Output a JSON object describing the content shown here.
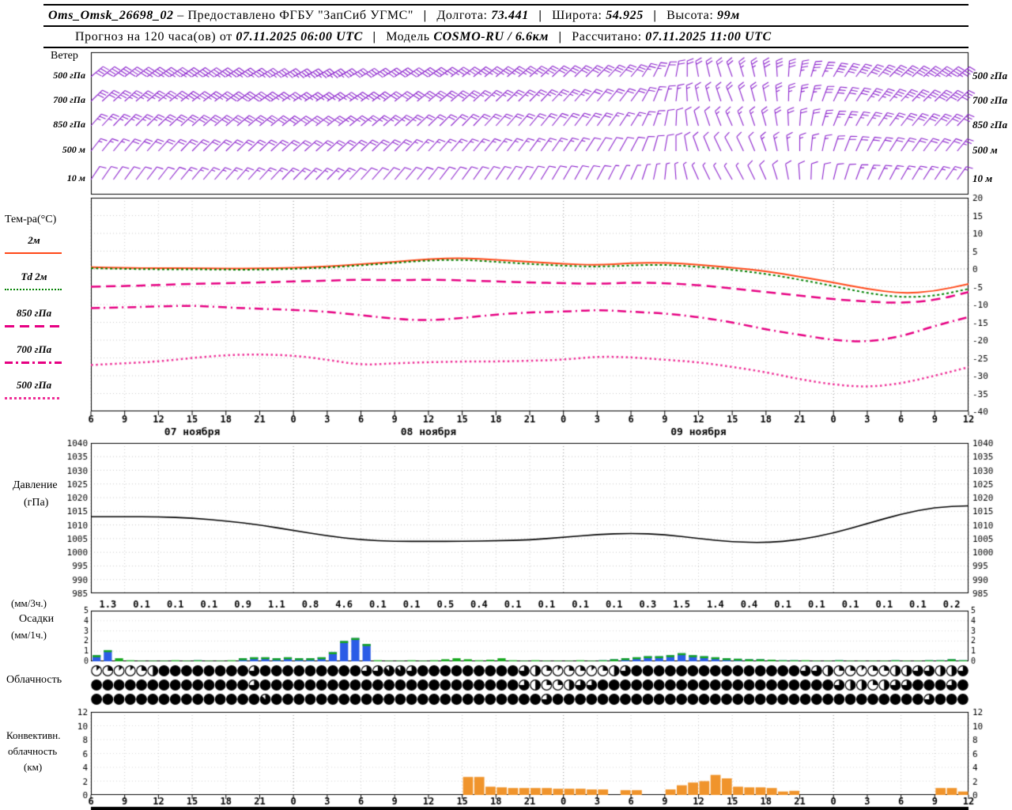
{
  "header": {
    "sep": "|",
    "line1": {
      "station": "Oms_Omsk_26698_02",
      "provided": "– Предоставлено ФГБУ \"ЗапСиб УГМС\"",
      "lon_label": "Долгота:",
      "lon": "73.441",
      "lat_label": "Широта:",
      "lat": "54.925",
      "alt_label": "Высота:",
      "alt": "99м"
    },
    "line2": {
      "forecast_label": "Прогноз на 120 часа(ов) от",
      "run_time": "07.11.2025 06:00 UTC",
      "model_label": "Модель",
      "model": "COSMO-RU / 6.6км",
      "calc_label": "Рассчитано:",
      "calc_time": "07.11.2025 11:00 UTC"
    }
  },
  "side_labels": {
    "wind": "Ветер",
    "wind_levels": [
      "500 гПа",
      "700 гПа",
      "850 гПа",
      "500 м",
      "10 м"
    ],
    "temp_title": "Тем-ра(°C)",
    "temp_legend": [
      {
        "label": "2м"
      },
      {
        "label": "Td 2м"
      },
      {
        "label": "850 гПа"
      },
      {
        "label": "700 гПа"
      },
      {
        "label": "500 гПа"
      }
    ],
    "pressure_1": "Давление",
    "pressure_2": "(гПа)",
    "precip_1": "(мм/3ч.)",
    "precip_2": "Осадки",
    "precip_3": "(мм/1ч.)",
    "cloud": "Облачность",
    "conv_1": "Конвективн.",
    "conv_2": "облачность",
    "conv_3": "(км)"
  },
  "chart_data": {
    "type": "meteogram",
    "time": {
      "hours_span": 78,
      "step": 3,
      "tick_labels": [
        "6",
        "9",
        "12",
        "15",
        "18",
        "21",
        "0",
        "3",
        "6",
        "9",
        "12",
        "15",
        "18",
        "21",
        "0",
        "3",
        "6",
        "9",
        "12",
        "15",
        "18",
        "21",
        "0",
        "3",
        "6",
        "9",
        "12"
      ],
      "dates": [
        {
          "label": "07 ноября",
          "center_h": 9
        },
        {
          "label": "08 ноября",
          "center_h": 30
        },
        {
          "label": "09 ноября",
          "center_h": 54
        }
      ]
    },
    "wind": {
      "color": "#8b22cc",
      "levels": [
        {
          "label": "500 гПа",
          "dirs": [
            50,
            52,
            54,
            55,
            56,
            58,
            60,
            60,
            58,
            56,
            54,
            52,
            50,
            48,
            46,
            44,
            40,
            20,
            350,
            340,
            350,
            10,
            30,
            40,
            46,
            50,
            52
          ],
          "spds": [
            40,
            42,
            44,
            44,
            45,
            45,
            44,
            44,
            42,
            40,
            38,
            36,
            34,
            34,
            32,
            30,
            28,
            22,
            18,
            22,
            28,
            34,
            38,
            40,
            42,
            44,
            45
          ]
        },
        {
          "label": "700 гПа",
          "dirs": [
            46,
            48,
            50,
            52,
            53,
            54,
            56,
            56,
            54,
            52,
            50,
            48,
            46,
            44,
            42,
            40,
            36,
            16,
            348,
            338,
            348,
            8,
            26,
            36,
            42,
            46,
            48
          ],
          "spds": [
            32,
            34,
            35,
            36,
            38,
            38,
            36,
            35,
            34,
            32,
            30,
            28,
            26,
            26,
            24,
            22,
            20,
            16,
            14,
            18,
            22,
            26,
            30,
            34,
            36,
            38,
            40
          ]
        },
        {
          "label": "850 гПа",
          "dirs": [
            42,
            44,
            46,
            48,
            49,
            50,
            52,
            52,
            50,
            48,
            46,
            44,
            42,
            40,
            38,
            36,
            32,
            12,
            344,
            336,
            344,
            4,
            22,
            32,
            38,
            42,
            44
          ],
          "spds": [
            24,
            26,
            28,
            28,
            30,
            30,
            28,
            28,
            26,
            24,
            22,
            22,
            20,
            20,
            18,
            18,
            16,
            12,
            12,
            14,
            18,
            22,
            24,
            26,
            28,
            30,
            30
          ]
        },
        {
          "label": "500 м",
          "dirs": [
            38,
            40,
            42,
            44,
            45,
            46,
            48,
            48,
            46,
            44,
            42,
            40,
            38,
            36,
            34,
            32,
            28,
            10,
            340,
            332,
            340,
            0,
            18,
            28,
            34,
            38,
            40
          ],
          "spds": [
            16,
            18,
            18,
            20,
            20,
            22,
            22,
            20,
            18,
            18,
            16,
            16,
            15,
            14,
            14,
            12,
            12,
            10,
            8,
            10,
            14,
            16,
            18,
            20,
            22,
            22,
            24
          ]
        },
        {
          "label": "10 м",
          "dirs": [
            34,
            36,
            38,
            40,
            41,
            42,
            44,
            44,
            42,
            40,
            38,
            36,
            34,
            32,
            30,
            28,
            24,
            6,
            336,
            330,
            336,
            356,
            14,
            24,
            30,
            34,
            36
          ],
          "spds": [
            10,
            12,
            12,
            14,
            14,
            15,
            15,
            14,
            12,
            12,
            10,
            10,
            9,
            9,
            8,
            8,
            7,
            6,
            6,
            7,
            9,
            10,
            12,
            14,
            15,
            16,
            16
          ]
        }
      ]
    },
    "temperature": {
      "ylim": [
        -40,
        20
      ],
      "step": 5,
      "series": [
        {
          "name": "2м",
          "color": "#ff4818",
          "width": 2,
          "dash": [],
          "values": [
            0.5,
            0.3,
            0.2,
            0.2,
            0.1,
            0.1,
            0.3,
            0.7,
            1.3,
            2.0,
            2.8,
            3.1,
            2.6,
            2.0,
            1.4,
            1.1,
            1.6,
            1.8,
            1.2,
            0.4,
            -0.6,
            -2.2,
            -3.8,
            -5.6,
            -6.9,
            -6.3,
            -4.2
          ]
        },
        {
          "name": "Td 2м",
          "color": "#008000",
          "width": 2,
          "dash": [
            3,
            3
          ],
          "values": [
            0.2,
            0.0,
            -0.1,
            -0.1,
            -0.2,
            -0.2,
            0.0,
            0.4,
            1.0,
            1.7,
            2.4,
            2.6,
            2.0,
            1.4,
            0.9,
            0.6,
            1.0,
            1.2,
            0.6,
            -0.2,
            -1.4,
            -3.0,
            -4.8,
            -6.8,
            -8.0,
            -7.6,
            -5.6
          ]
        },
        {
          "name": "850 гПа",
          "color": "#e60082",
          "width": 2.5,
          "dash": [
            12,
            7
          ],
          "values": [
            -5.0,
            -4.8,
            -4.5,
            -4.2,
            -4.0,
            -3.8,
            -3.5,
            -3.3,
            -3.0,
            -3.2,
            -3.0,
            -3.2,
            -3.5,
            -3.8,
            -4.0,
            -4.2,
            -3.8,
            -4.0,
            -4.5,
            -5.5,
            -6.5,
            -7.5,
            -8.5,
            -9.2,
            -9.6,
            -8.8,
            -6.5
          ]
        },
        {
          "name": "700 гПа",
          "color": "#e60082",
          "width": 2.5,
          "dash": [
            11,
            5,
            2,
            5
          ],
          "values": [
            -11.0,
            -10.8,
            -10.5,
            -10.3,
            -10.8,
            -11.2,
            -11.5,
            -12.0,
            -13.0,
            -14.0,
            -14.5,
            -13.8,
            -12.8,
            -12.2,
            -12.0,
            -11.5,
            -12.0,
            -12.5,
            -13.5,
            -15.0,
            -17.0,
            -18.5,
            -20.0,
            -20.5,
            -19.0,
            -16.0,
            -13.5
          ]
        },
        {
          "name": "500 гПа",
          "color": "#ee2e96",
          "width": 2.5,
          "dash": [
            2.5,
            3.5
          ],
          "values": [
            -27.0,
            -26.5,
            -26.0,
            -25.0,
            -24.2,
            -24.0,
            -24.3,
            -25.5,
            -27.0,
            -26.5,
            -26.2,
            -26.0,
            -26.0,
            -25.8,
            -25.5,
            -24.6,
            -24.8,
            -25.5,
            -26.2,
            -27.5,
            -29.0,
            -31.0,
            -32.5,
            -33.2,
            -32.2,
            -30.0,
            -27.6
          ]
        }
      ]
    },
    "pressure": {
      "ylim": [
        985,
        1040
      ],
      "step": 5,
      "color": "#000000",
      "values": [
        1013,
        1013,
        1013,
        1012.5,
        1011.5,
        1010,
        1008,
        1006,
        1004.5,
        1004,
        1004,
        1004,
        1004.2,
        1004.5,
        1005.5,
        1006.5,
        1007,
        1006.5,
        1005,
        1003.8,
        1003.5,
        1004.5,
        1007,
        1010.5,
        1014,
        1016.5,
        1017
      ]
    },
    "precip": {
      "ylim": [
        0,
        5
      ],
      "blue": "#2b5ce6",
      "green": "#17a81e",
      "labels_3h": [
        "1.3",
        "0.1",
        "0.1",
        "0.1",
        "0.9",
        "1.1",
        "0.8",
        "4.6",
        "0.1",
        "0.1",
        "0.5",
        "0.4",
        "0.1",
        "0.1",
        "0.1",
        "0.1",
        "0.3",
        "1.5",
        "1.4",
        "0.4",
        "0.1",
        "0.1",
        "0.1",
        "0.1",
        "0.1",
        "0.2"
      ],
      "hourly": [
        0.6,
        1.1,
        0.3,
        0.1,
        0.05,
        0.05,
        0.05,
        0.1,
        0.05,
        0.1,
        0.05,
        0.05,
        0.1,
        0.3,
        0.4,
        0.4,
        0.3,
        0.4,
        0.3,
        0.3,
        0.4,
        0.9,
        2.0,
        2.3,
        1.7,
        0.1,
        0.05,
        0.05,
        0.1,
        0.05,
        0.1,
        0.2,
        0.3,
        0.2,
        0.1,
        0.15,
        0.3,
        0.1,
        0.05,
        0.1,
        0.05,
        0.05,
        0.05,
        0.1,
        0.05,
        0.1,
        0.2,
        0.3,
        0.4,
        0.5,
        0.5,
        0.6,
        0.8,
        0.6,
        0.5,
        0.4,
        0.3,
        0.25,
        0.2,
        0.2,
        0.15,
        0.1,
        0.1,
        0.1,
        0.05,
        0.05,
        0.1,
        0.05,
        0.05,
        0.05,
        0.05,
        0.1,
        0.05,
        0.05,
        0.1,
        0.1,
        0.2,
        0.1
      ],
      "colors": "bbgggggggbgggbbbbbbbbbbbbggggggggggggggggggggbbbbbbbbbbbbbbbbbbgggbggggbggbbbb"
    },
    "cloud": {
      "octas_max": 8,
      "rows": [
        [
          1,
          2,
          1,
          1,
          2,
          4,
          8,
          8,
          8,
          8,
          8,
          8,
          8,
          8,
          6,
          8,
          8,
          8,
          8,
          8,
          8,
          8,
          8,
          8,
          6,
          6,
          7,
          7,
          6,
          8,
          8,
          8,
          8,
          8,
          8,
          8,
          8,
          8,
          6,
          4,
          2,
          1,
          2,
          2,
          1,
          2,
          4,
          6,
          8,
          8,
          8,
          8,
          8,
          8,
          8,
          8,
          8,
          8,
          8,
          8,
          8,
          8,
          8,
          6,
          6,
          4,
          2,
          2,
          1,
          2,
          2,
          4,
          4,
          6,
          6,
          4,
          4,
          6
        ],
        [
          8,
          8,
          8,
          8,
          8,
          8,
          8,
          8,
          8,
          8,
          8,
          8,
          8,
          8,
          6,
          8,
          8,
          8,
          8,
          8,
          8,
          8,
          8,
          8,
          8,
          8,
          8,
          8,
          8,
          8,
          8,
          8,
          8,
          8,
          8,
          8,
          8,
          8,
          6,
          4,
          2,
          2,
          4,
          6,
          6,
          8,
          8,
          8,
          8,
          8,
          8,
          8,
          8,
          8,
          8,
          8,
          8,
          8,
          8,
          8,
          8,
          8,
          8,
          8,
          8,
          8,
          6,
          4,
          4,
          2,
          4,
          6,
          6,
          8,
          8,
          8,
          6,
          8
        ],
        [
          8,
          8,
          8,
          8,
          8,
          8,
          8,
          8,
          8,
          8,
          8,
          8,
          8,
          8,
          8,
          7,
          8,
          8,
          8,
          8,
          8,
          8,
          8,
          8,
          8,
          8,
          8,
          8,
          8,
          8,
          8,
          8,
          8,
          8,
          8,
          8,
          8,
          8,
          8,
          8,
          6,
          8,
          8,
          8,
          8,
          8,
          8,
          8,
          8,
          8,
          8,
          8,
          8,
          8,
          8,
          8,
          8,
          8,
          8,
          8,
          8,
          8,
          8,
          8,
          8,
          8,
          8,
          8,
          8,
          8,
          8,
          8,
          8,
          8,
          6,
          8,
          8,
          8
        ]
      ]
    },
    "convective": {
      "ylim": [
        0,
        12
      ],
      "step": 2,
      "color": "#f0942c",
      "hourly": [
        0,
        0,
        0,
        0,
        0,
        0,
        0,
        0,
        0,
        0,
        0,
        0,
        0,
        0,
        0,
        0,
        0,
        0,
        0,
        0,
        0,
        0,
        0,
        0,
        0,
        0,
        0,
        0,
        0,
        0,
        0,
        0,
        0,
        2.6,
        2.6,
        1.2,
        1.1,
        1.0,
        1.0,
        1.0,
        1.0,
        0.9,
        0.9,
        0.9,
        0.8,
        0.8,
        0,
        0.7,
        0.7,
        0,
        0,
        0.8,
        1.4,
        1.8,
        2.0,
        2.9,
        2.4,
        1.2,
        1.1,
        1.1,
        1.0,
        0.5,
        0.6,
        0,
        0,
        0,
        0,
        0,
        0,
        0,
        0,
        0,
        0,
        0,
        0,
        1.0,
        1.0,
        0.5
      ]
    }
  }
}
